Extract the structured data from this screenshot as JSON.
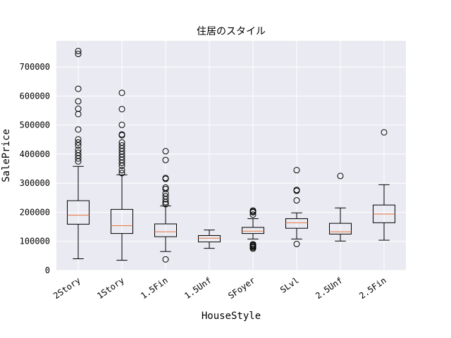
{
  "chart_data": {
    "type": "boxplot",
    "title": "住居のスタイル",
    "xlabel": "HouseStyle",
    "ylabel": "SalePrice",
    "ylim": [
      0,
      790000
    ],
    "yticks": [
      0,
      100000,
      200000,
      300000,
      400000,
      500000,
      600000,
      700000
    ],
    "grid": true,
    "colors": {
      "background": "#eaeaf2",
      "grid": "#ffffff",
      "box": "#000000",
      "median": "#e8743b"
    },
    "categories": [
      "2Story",
      "1Story",
      "1.5Fin",
      "1.5Unf",
      "SFoyer",
      "SLvl",
      "2.5Unf",
      "2.5Fin"
    ],
    "boxes": [
      {
        "category": "2Story",
        "whisker_low": 40000,
        "q1": 159000,
        "median": 190000,
        "q3": 240000,
        "whisker_high": 358000,
        "outliers": [
          755000,
          745000,
          625000,
          582000,
          556000,
          538000,
          485000,
          451000,
          440000,
          430000,
          415000,
          405000,
          395000,
          385000,
          375000
        ]
      },
      {
        "category": "1Story",
        "whisker_low": 34900,
        "q1": 127000,
        "median": 154000,
        "q3": 210000,
        "whisker_high": 329000,
        "outliers": [
          611000,
          555000,
          501000,
          468000,
          465000,
          440000,
          430000,
          420000,
          410000,
          400000,
          390000,
          380000,
          370000,
          360000,
          345000,
          335000
        ]
      },
      {
        "category": "1.5Fin",
        "whisker_low": 65000,
        "q1": 116000,
        "median": 133000,
        "q3": 160000,
        "whisker_high": 222000,
        "outliers": [
          410000,
          380000,
          318000,
          315000,
          285000,
          280000,
          265000,
          255000,
          245000,
          235000,
          228000,
          37900
        ]
      },
      {
        "category": "1.5Unf",
        "whisker_low": 76000,
        "q1": 98000,
        "median": 111000,
        "q3": 120000,
        "whisker_high": 139000,
        "outliers": []
      },
      {
        "category": "SFoyer",
        "whisker_low": 108000,
        "q1": 127000,
        "median": 135000,
        "q3": 148000,
        "whisker_high": 178000,
        "outliers": [
          206000,
          203000,
          200000,
          192000,
          90000,
          87000,
          85000,
          82000,
          79000,
          75000
        ]
      },
      {
        "category": "SLvl",
        "whisker_low": 108000,
        "q1": 145000,
        "median": 164000,
        "q3": 178000,
        "whisker_high": 198000,
        "outliers": [
          345000,
          277000,
          274000,
          241000,
          91000
        ]
      },
      {
        "category": "2.5Unf",
        "whisker_low": 101000,
        "q1": 125000,
        "median": 133000,
        "q3": 162000,
        "whisker_high": 215000,
        "outliers": [
          325000
        ]
      },
      {
        "category": "2.5Fin",
        "whisker_low": 104000,
        "q1": 164000,
        "median": 194000,
        "q3": 225000,
        "whisker_high": 295000,
        "outliers": [
          475000
        ]
      }
    ]
  }
}
